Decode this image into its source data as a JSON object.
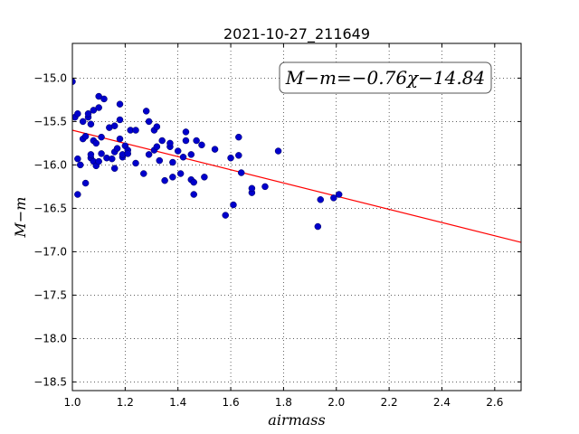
{
  "chart_data": {
    "type": "scatter",
    "title": "2021-10-27_211649",
    "xlabel": "airmass",
    "ylabel": "M−m",
    "xlim": [
      1.0,
      2.7
    ],
    "ylim": [
      -18.6,
      -14.6
    ],
    "x_ticks": [
      1.0,
      1.2,
      1.4,
      1.6,
      1.8,
      2.0,
      2.2,
      2.4,
      2.6
    ],
    "x_tick_labels": [
      "1.0",
      "1.2",
      "1.4",
      "1.6",
      "1.8",
      "2.0",
      "2.2",
      "2.4",
      "2.6"
    ],
    "y_ticks": [
      -15.0,
      -15.5,
      -16.0,
      -16.5,
      -17.0,
      -17.5,
      -18.0,
      -18.5
    ],
    "y_tick_labels": [
      "−15.0",
      "−15.5",
      "−16.0",
      "−16.5",
      "−17.0",
      "−17.5",
      "−18.0",
      "−18.5"
    ],
    "grid": true,
    "fit": {
      "slope": -0.76,
      "intercept": -14.84,
      "color": "#ff0000"
    },
    "annotation": "M−m=−0.76χ−14.84",
    "point_color": "#0000cc",
    "points": [
      [
        1.0,
        -15.04
      ],
      [
        1.01,
        -15.45
      ],
      [
        1.02,
        -15.41
      ],
      [
        1.02,
        -15.93
      ],
      [
        1.02,
        -16.34
      ],
      [
        1.03,
        -16.0
      ],
      [
        1.04,
        -15.5
      ],
      [
        1.04,
        -15.7
      ],
      [
        1.05,
        -15.67
      ],
      [
        1.05,
        -16.21
      ],
      [
        1.06,
        -15.45
      ],
      [
        1.06,
        -15.41
      ],
      [
        1.07,
        -15.53
      ],
      [
        1.07,
        -15.92
      ],
      [
        1.07,
        -15.88
      ],
      [
        1.08,
        -15.72
      ],
      [
        1.08,
        -15.37
      ],
      [
        1.08,
        -15.96
      ],
      [
        1.09,
        -16.01
      ],
      [
        1.09,
        -15.75
      ],
      [
        1.1,
        -15.34
      ],
      [
        1.1,
        -15.21
      ],
      [
        1.1,
        -15.96
      ],
      [
        1.11,
        -15.68
      ],
      [
        1.11,
        -15.87
      ],
      [
        1.12,
        -15.24
      ],
      [
        1.13,
        -15.92
      ],
      [
        1.14,
        -15.57
      ],
      [
        1.15,
        -15.93
      ],
      [
        1.16,
        -15.55
      ],
      [
        1.16,
        -15.85
      ],
      [
        1.16,
        -16.04
      ],
      [
        1.17,
        -15.81
      ],
      [
        1.18,
        -15.48
      ],
      [
        1.18,
        -15.3
      ],
      [
        1.18,
        -15.7
      ],
      [
        1.19,
        -15.91
      ],
      [
        1.19,
        -15.88
      ],
      [
        1.2,
        -15.78
      ],
      [
        1.21,
        -15.83
      ],
      [
        1.21,
        -15.87
      ],
      [
        1.22,
        -15.6
      ],
      [
        1.24,
        -15.6
      ],
      [
        1.24,
        -15.98
      ],
      [
        1.27,
        -16.1
      ],
      [
        1.28,
        -15.38
      ],
      [
        1.29,
        -15.5
      ],
      [
        1.29,
        -15.88
      ],
      [
        1.31,
        -15.83
      ],
      [
        1.31,
        -15.6
      ],
      [
        1.32,
        -15.56
      ],
      [
        1.32,
        -15.79
      ],
      [
        1.33,
        -15.95
      ],
      [
        1.34,
        -15.72
      ],
      [
        1.35,
        -16.18
      ],
      [
        1.37,
        -15.79
      ],
      [
        1.37,
        -15.75
      ],
      [
        1.38,
        -15.97
      ],
      [
        1.38,
        -16.14
      ],
      [
        1.4,
        -15.84
      ],
      [
        1.41,
        -16.1
      ],
      [
        1.42,
        -15.91
      ],
      [
        1.43,
        -15.62
      ],
      [
        1.43,
        -15.72
      ],
      [
        1.45,
        -15.88
      ],
      [
        1.45,
        -16.17
      ],
      [
        1.46,
        -16.34
      ],
      [
        1.46,
        -16.2
      ],
      [
        1.47,
        -15.72
      ],
      [
        1.49,
        -15.77
      ],
      [
        1.5,
        -16.14
      ],
      [
        1.54,
        -15.82
      ],
      [
        1.58,
        -16.58
      ],
      [
        1.6,
        -15.92
      ],
      [
        1.61,
        -16.46
      ],
      [
        1.63,
        -15.68
      ],
      [
        1.63,
        -15.89
      ],
      [
        1.64,
        -16.09
      ],
      [
        1.68,
        -16.32
      ],
      [
        1.68,
        -16.27
      ],
      [
        1.73,
        -16.25
      ],
      [
        1.78,
        -15.84
      ],
      [
        1.93,
        -16.71
      ],
      [
        1.94,
        -16.4
      ],
      [
        1.99,
        -16.38
      ],
      [
        2.01,
        -16.34
      ]
    ]
  }
}
